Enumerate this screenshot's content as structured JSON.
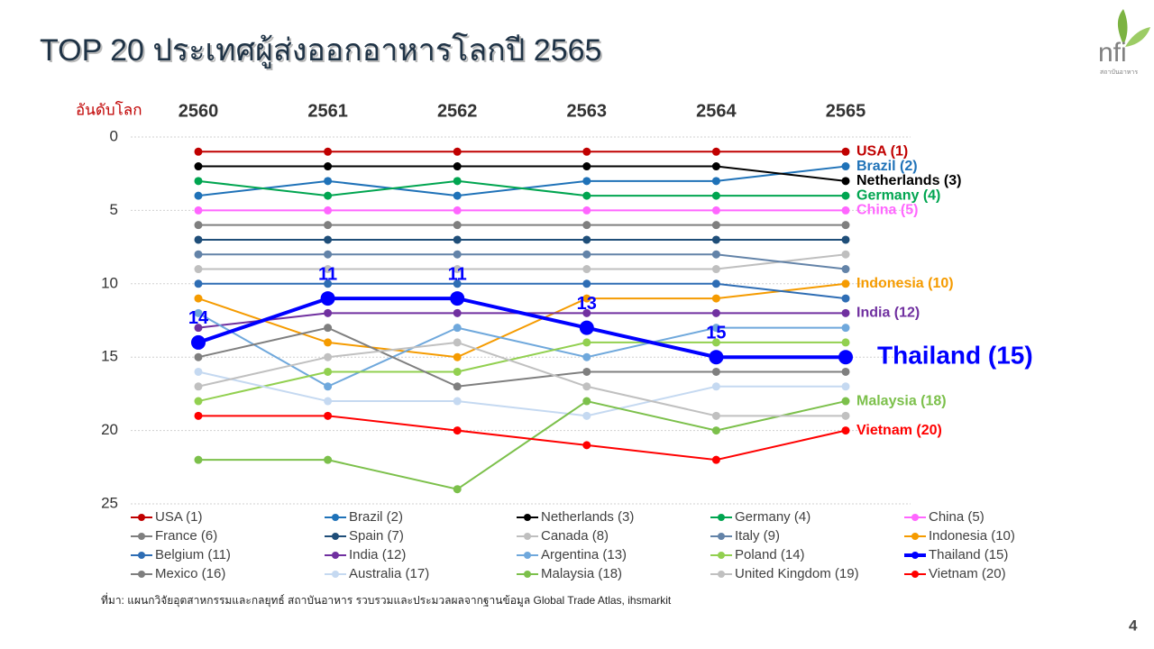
{
  "header": {
    "title": "TOP 20 ประเทศผู้ส่งออกอาหารโลกปี 2565",
    "logo": "nfi",
    "logo_subtext": "สถาบันอาหาร"
  },
  "source": "ที่มา: แผนกวิจัยอุตสาหกรรมและกลยุทธ์  สถาบันอาหาร รวบรวมและประมวลผลจากฐานข้อมูล Global Trade Atlas, ihsmarkit",
  "page_number": "4",
  "chart_data": {
    "type": "line",
    "y_label": "อันดับโลก",
    "categories": [
      "2560",
      "2561",
      "2562",
      "2563",
      "2564",
      "2565"
    ],
    "x_axis_position": "top",
    "y_inverted": true,
    "grid": true,
    "legend_position": "bottom",
    "ylim": [
      0,
      25
    ],
    "yticks": [
      0,
      5,
      10,
      15,
      20,
      25
    ],
    "series": [
      {
        "name": "USA (1)",
        "color": "#c00000",
        "values": [
          1,
          1,
          1,
          1,
          1,
          1
        ],
        "end_label": true
      },
      {
        "name": "Brazil (2)",
        "color": "#1f72b8",
        "values": [
          4,
          3,
          4,
          3,
          3,
          2
        ],
        "end_label": true
      },
      {
        "name": "Netherlands (3)",
        "color": "#000000",
        "values": [
          2,
          2,
          2,
          2,
          2,
          3
        ],
        "end_label": true
      },
      {
        "name": "Germany (4)",
        "color": "#00a550",
        "values": [
          3,
          4,
          3,
          4,
          4,
          4
        ],
        "end_label": true
      },
      {
        "name": "China (5)",
        "color": "#ff66ff",
        "values": [
          5,
          5,
          5,
          5,
          5,
          5
        ],
        "end_label": true
      },
      {
        "name": "France (6)",
        "color": "#7f7f7f",
        "values": [
          6,
          6,
          6,
          6,
          6,
          6
        ]
      },
      {
        "name": "Spain (7)",
        "color": "#1f4e79",
        "values": [
          7,
          7,
          7,
          7,
          7,
          7
        ]
      },
      {
        "name": "Canada (8)",
        "color": "#bfbfbf",
        "values": [
          9,
          9,
          9,
          9,
          9,
          8
        ]
      },
      {
        "name": "Italy (9)",
        "color": "#6383a8",
        "values": [
          8,
          8,
          8,
          8,
          8,
          9
        ]
      },
      {
        "name": "Indonesia (10)",
        "color": "#f59b00",
        "values": [
          11,
          14,
          15,
          11,
          11,
          10
        ],
        "end_label": true
      },
      {
        "name": "Belgium (11)",
        "color": "#2e6db4",
        "values": [
          10,
          10,
          10,
          10,
          10,
          11
        ]
      },
      {
        "name": "India (12)",
        "color": "#7030a0",
        "values": [
          13,
          12,
          12,
          12,
          12,
          12
        ],
        "end_label": true
      },
      {
        "name": "Argentina (13)",
        "color": "#6fa8dc",
        "values": [
          12,
          17,
          13,
          15,
          13,
          13
        ]
      },
      {
        "name": "Poland (14)",
        "color": "#92d050",
        "values": [
          18,
          16,
          16,
          14,
          14,
          14
        ]
      },
      {
        "name": "Thailand (15)",
        "color": "#0000ff",
        "values": [
          14,
          11,
          11,
          13,
          15,
          15
        ],
        "end_label": true,
        "data_labels": true,
        "width": 4
      },
      {
        "name": "Mexico (16)",
        "color": "#7f7f7f",
        "values": [
          15,
          13,
          17,
          16,
          16,
          16
        ]
      },
      {
        "name": "Australia (17)",
        "color": "#c5d9f1",
        "values": [
          16,
          18,
          18,
          19,
          17,
          17
        ]
      },
      {
        "name": "Malaysia (18)",
        "color": "#7cc04b",
        "values": [
          22,
          22,
          24,
          18,
          20,
          18
        ],
        "end_label": true
      },
      {
        "name": "United Kingdom (19)",
        "color": "#c0c0c0",
        "values": [
          17,
          15,
          14,
          17,
          19,
          19
        ]
      },
      {
        "name": "Vietnam (20)",
        "color": "#ff0000",
        "values": [
          19,
          19,
          20,
          21,
          22,
          20
        ],
        "end_label": true
      }
    ]
  }
}
